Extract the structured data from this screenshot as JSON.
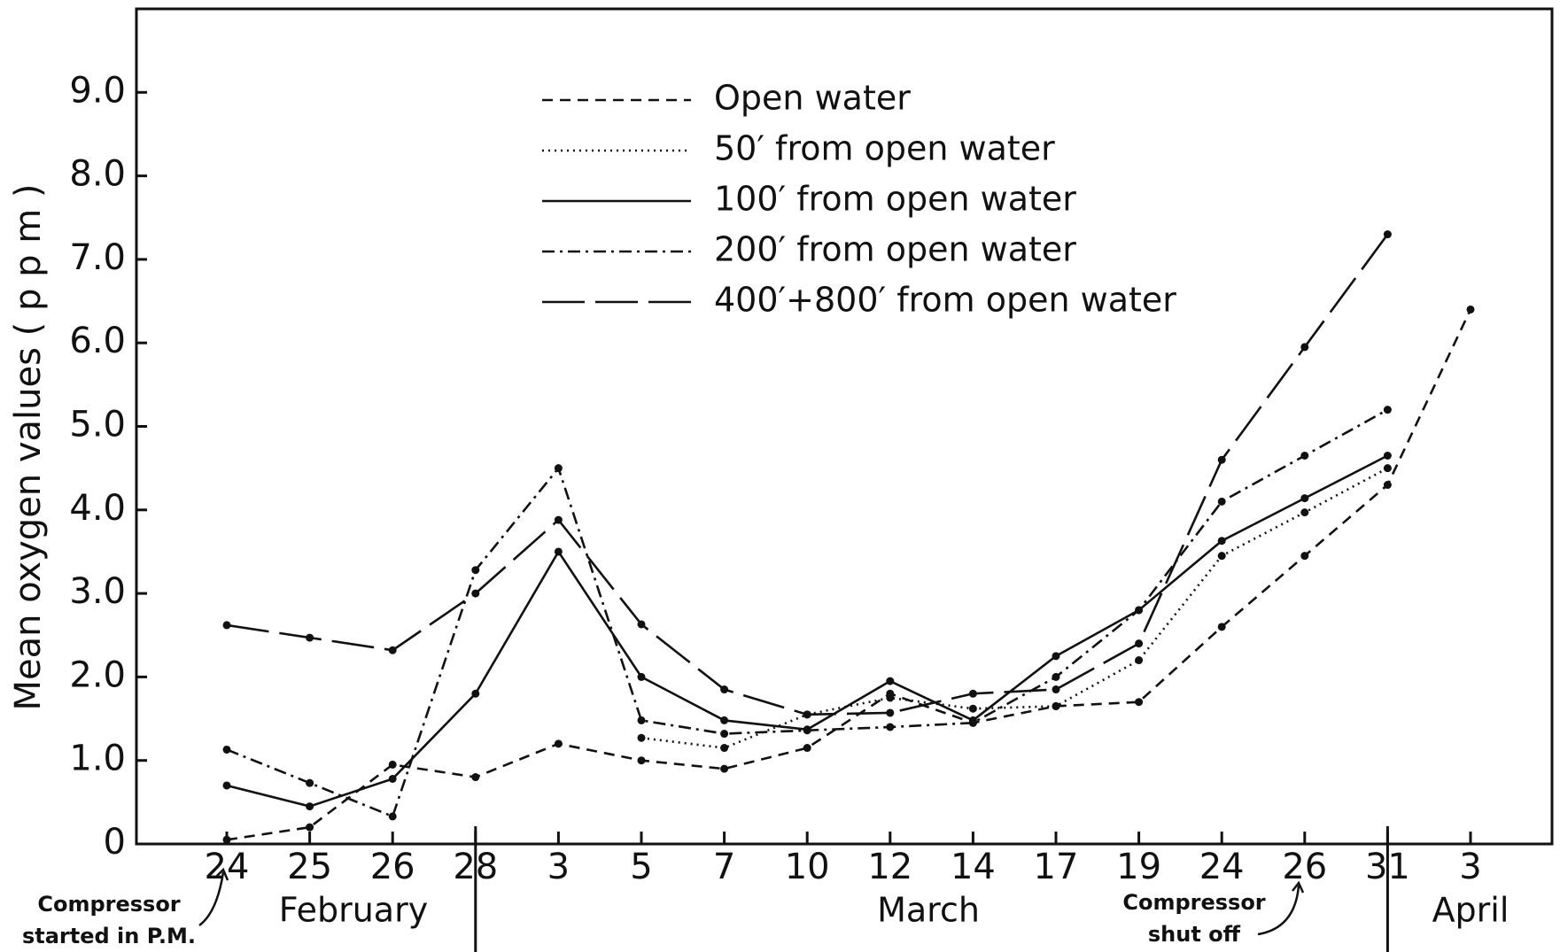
{
  "chart_data": {
    "type": "line",
    "y_label": "Mean oxygen values ( p p m )",
    "categories": [
      "24",
      "25",
      "26",
      "28",
      "3",
      "5",
      "7",
      "10",
      "12",
      "14",
      "17",
      "19",
      "24",
      "26",
      "31",
      "3"
    ],
    "months": [
      "February",
      "March",
      "April"
    ],
    "ylim": [
      0,
      10
    ],
    "yticks": [
      0,
      {
        "value": 1,
        "label": "1.0"
      },
      {
        "value": 2,
        "label": "2.0"
      },
      {
        "value": 3,
        "label": "3.0"
      },
      {
        "value": 4,
        "label": "4.0"
      },
      {
        "value": 5,
        "label": "5.0"
      },
      {
        "value": 6,
        "label": "6.0"
      },
      {
        "value": 7,
        "label": "7.0"
      },
      {
        "value": 8,
        "label": "8.0"
      },
      {
        "value": 9,
        "label": "9.0"
      }
    ],
    "grid": false,
    "legend": "top",
    "series": [
      {
        "name": "Open water",
        "color": "#111111",
        "dash": "dashed",
        "values": [
          0.05,
          0.2,
          0.95,
          0.8,
          1.2,
          1.0,
          0.9,
          1.15,
          1.8,
          1.45,
          1.65,
          1.7,
          2.6,
          3.45,
          4.3,
          6.4
        ]
      },
      {
        "name": "50′ from open water",
        "color": "#111111",
        "dash": "dotted",
        "values": [
          null,
          null,
          null,
          null,
          null,
          1.27,
          1.15,
          1.55,
          1.75,
          1.62,
          1.65,
          2.2,
          3.45,
          3.97,
          4.5,
          null
        ]
      },
      {
        "name": "100′ from open water",
        "color": "#111111",
        "dash": "solid",
        "values": [
          0.7,
          0.45,
          0.78,
          1.8,
          3.5,
          2.0,
          1.48,
          1.37,
          1.95,
          1.48,
          2.25,
          2.8,
          3.63,
          4.14,
          4.65,
          null
        ]
      },
      {
        "name": "200′ from open water",
        "color": "#111111",
        "dash": "dashdot",
        "values": [
          1.13,
          0.73,
          0.33,
          3.28,
          4.5,
          1.48,
          1.32,
          1.36,
          1.4,
          1.45,
          2.0,
          2.8,
          4.1,
          4.65,
          5.2,
          null
        ]
      },
      {
        "name": "400′+800′ from open water",
        "color": "#111111",
        "dash": "longdash",
        "values": [
          2.62,
          2.47,
          2.32,
          3.0,
          3.88,
          2.63,
          1.85,
          1.55,
          1.57,
          1.8,
          1.85,
          2.4,
          4.6,
          5.95,
          7.3,
          null
        ]
      }
    ],
    "annotations": [
      {
        "lines": [
          "Compressor",
          "started in P.M."
        ]
      },
      {
        "lines": [
          "Compressor",
          "shut off"
        ]
      }
    ]
  }
}
